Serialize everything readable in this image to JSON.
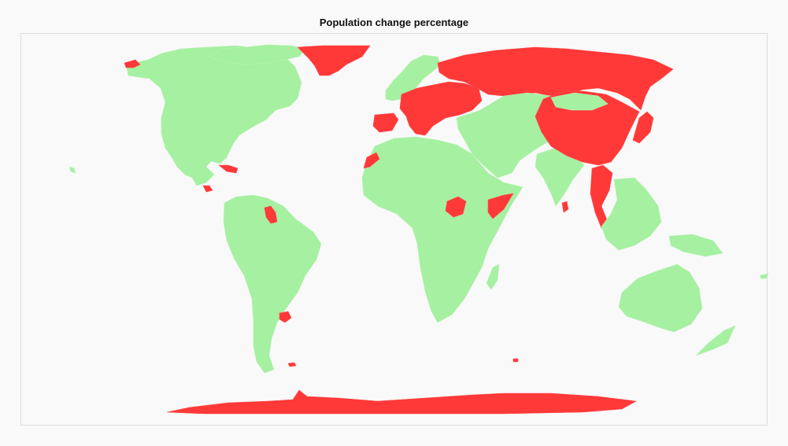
{
  "title": "Population change percentage",
  "colors": {
    "background": "#f9f9f9",
    "frame_border": "#dcdcdc",
    "positive_change": "#a6f0a1",
    "negative_change": "#ff3838"
  },
  "map": {
    "projection": "equirectangular-like world map",
    "categories": [
      "positive population change",
      "negative population change"
    ],
    "regions": [
      {
        "name": "North America",
        "category": "positive population change"
      },
      {
        "name": "Greenland",
        "category": "negative population change"
      },
      {
        "name": "Alaska west tip",
        "category": "negative population change"
      },
      {
        "name": "Cuba",
        "category": "negative population change"
      },
      {
        "name": "Central America (south)",
        "category": "negative population change"
      },
      {
        "name": "South America",
        "category": "positive population change"
      },
      {
        "name": "Guyana / Suriname",
        "category": "negative population change"
      },
      {
        "name": "Uruguay",
        "category": "negative population change"
      },
      {
        "name": "Falkland Islands",
        "category": "negative population change"
      },
      {
        "name": "Western Europe / Scandinavia",
        "category": "positive population change"
      },
      {
        "name": "Iberia",
        "category": "negative population change"
      },
      {
        "name": "Central & Eastern Europe",
        "category": "negative population change"
      },
      {
        "name": "Russia",
        "category": "negative population change"
      },
      {
        "name": "Africa",
        "category": "positive population change"
      },
      {
        "name": "Western Sahara",
        "category": "negative population change"
      },
      {
        "name": "South Sudan",
        "category": "negative population change"
      },
      {
        "name": "Somalia",
        "category": "negative population change"
      },
      {
        "name": "Madagascar",
        "category": "positive population change"
      },
      {
        "name": "Middle East / Central Asia",
        "category": "positive population change"
      },
      {
        "name": "India",
        "category": "positive population change"
      },
      {
        "name": "Sri Lanka",
        "category": "negative population change"
      },
      {
        "name": "China",
        "category": "negative population change"
      },
      {
        "name": "Japan / Korea",
        "category": "negative population change"
      },
      {
        "name": "Thailand / Indochina",
        "category": "negative population change"
      },
      {
        "name": "Southeast Asia islands",
        "category": "positive population change"
      },
      {
        "name": "Australia",
        "category": "positive population change"
      },
      {
        "name": "New Zealand",
        "category": "positive population change"
      },
      {
        "name": "Antarctica",
        "category": "negative population change"
      }
    ]
  }
}
